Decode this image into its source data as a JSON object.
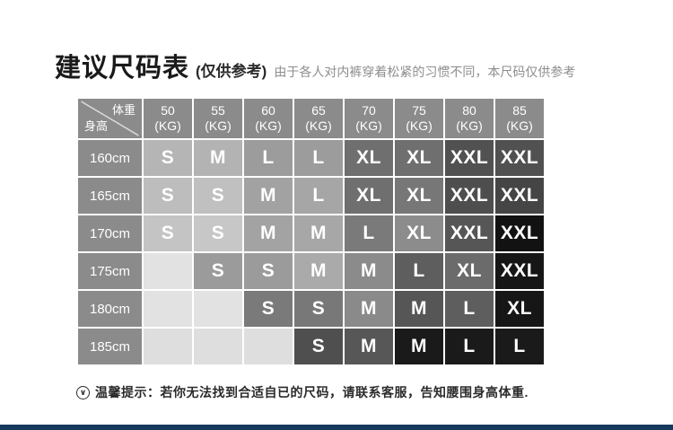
{
  "header": {
    "title": "建议尺码表",
    "subtitle": "(仅供参考)",
    "note": "由于各人对内裤穿着松紧的习惯不同，本尺码仅供参考"
  },
  "table": {
    "corner": {
      "top_right": "体重",
      "bottom_left": "身高"
    },
    "header_bg": "#8b8b8b",
    "weight_unit": "(KG)",
    "weight_columns": [
      "50",
      "55",
      "60",
      "65",
      "70",
      "75",
      "80",
      "85"
    ],
    "rows": [
      {
        "height": "160cm",
        "cells": [
          {
            "label": "S",
            "bg": "#b5b5b5"
          },
          {
            "label": "M",
            "bg": "#b3b3b3"
          },
          {
            "label": "L",
            "bg": "#9c9c9c"
          },
          {
            "label": "L",
            "bg": "#9c9c9c"
          },
          {
            "label": "XL",
            "bg": "#6f6f6f"
          },
          {
            "label": "XL",
            "bg": "#6f6f6f"
          },
          {
            "label": "XXL",
            "bg": "#515151"
          },
          {
            "label": "XXL",
            "bg": "#515151"
          }
        ]
      },
      {
        "height": "165cm",
        "cells": [
          {
            "label": "S",
            "bg": "#bdbdbd"
          },
          {
            "label": "S",
            "bg": "#c0c0c0"
          },
          {
            "label": "M",
            "bg": "#a2a2a2"
          },
          {
            "label": "L",
            "bg": "#a6a6a6"
          },
          {
            "label": "XL",
            "bg": "#6f6f6f"
          },
          {
            "label": "XL",
            "bg": "#777777"
          },
          {
            "label": "XXL",
            "bg": "#4e4e4e"
          },
          {
            "label": "XXL",
            "bg": "#454545"
          }
        ]
      },
      {
        "height": "170cm",
        "cells": [
          {
            "label": "S",
            "bg": "#c4c4c4"
          },
          {
            "label": "S",
            "bg": "#c7c7c7"
          },
          {
            "label": "M",
            "bg": "#a3a3a3"
          },
          {
            "label": "M",
            "bg": "#a7a7a7"
          },
          {
            "label": "L",
            "bg": "#7a7a7a"
          },
          {
            "label": "XL",
            "bg": "#8c8c8c"
          },
          {
            "label": "XXL",
            "bg": "#565656"
          },
          {
            "label": "XXL",
            "bg": "#121212"
          }
        ]
      },
      {
        "height": "175cm",
        "cells": [
          {
            "label": "",
            "bg": "#e2e2e2"
          },
          {
            "label": "S",
            "bg": "#9b9b9b"
          },
          {
            "label": "S",
            "bg": "#9b9b9b"
          },
          {
            "label": "M",
            "bg": "#aaaaaa"
          },
          {
            "label": "M",
            "bg": "#8b8b8b"
          },
          {
            "label": "L",
            "bg": "#5e5e5e"
          },
          {
            "label": "XL",
            "bg": "#6b6b6b"
          },
          {
            "label": "XXL",
            "bg": "#161616"
          }
        ]
      },
      {
        "height": "180cm",
        "cells": [
          {
            "label": "",
            "bg": "#e2e2e2"
          },
          {
            "label": "",
            "bg": "#e2e2e2"
          },
          {
            "label": "S",
            "bg": "#7a7a7a"
          },
          {
            "label": "S",
            "bg": "#787878"
          },
          {
            "label": "M",
            "bg": "#8a8a8a"
          },
          {
            "label": "M",
            "bg": "#565656"
          },
          {
            "label": "L",
            "bg": "#5e5e5e"
          },
          {
            "label": "XL",
            "bg": "#161616"
          }
        ]
      },
      {
        "height": "185cm",
        "cells": [
          {
            "label": "",
            "bg": "#dedede"
          },
          {
            "label": "",
            "bg": "#dedede"
          },
          {
            "label": "",
            "bg": "#dedede"
          },
          {
            "label": "S",
            "bg": "#4f4f4f"
          },
          {
            "label": "M",
            "bg": "#575757"
          },
          {
            "label": "M",
            "bg": "#1a1a1a"
          },
          {
            "label": "L",
            "bg": "#1a1a1a"
          },
          {
            "label": "L",
            "bg": "#1a1a1a"
          }
        ]
      }
    ]
  },
  "footer": {
    "icon_glyph": "∨",
    "note": "温馨提示：若你无法找到合适自已的尺码，请联系客服，告知腰围身高体重."
  },
  "colors": {
    "bottom_bar": "#17395c",
    "header_cell": "#8b8b8b",
    "diagonal_line": "#d9d9d9"
  }
}
